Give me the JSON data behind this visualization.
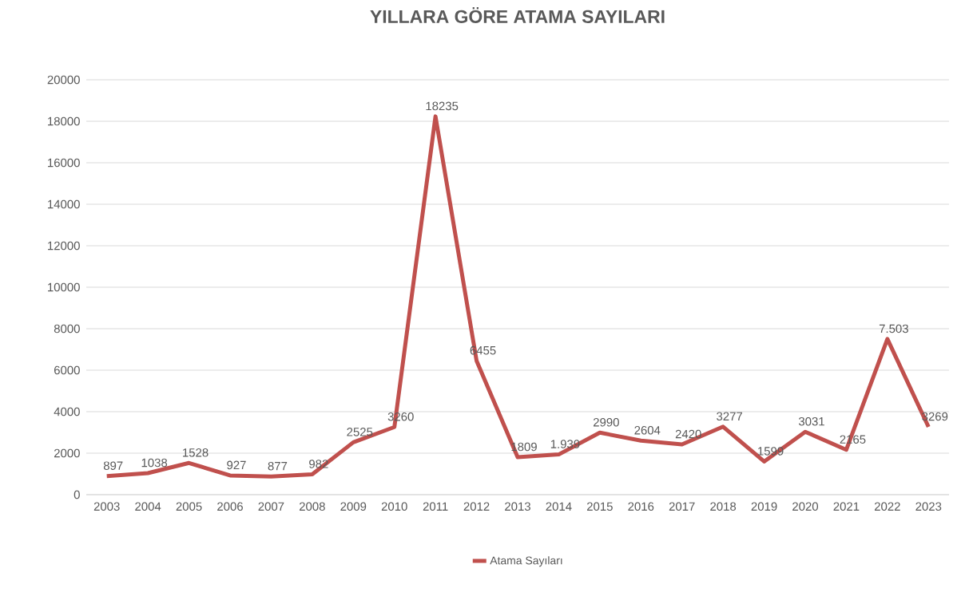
{
  "chart_data": {
    "type": "line",
    "title": "YILLARA GÖRE ATAMA SAYILARI",
    "categories": [
      "2003",
      "2004",
      "2005",
      "2006",
      "2007",
      "2008",
      "2009",
      "2010",
      "2011",
      "2012",
      "2013",
      "2014",
      "2015",
      "2016",
      "2017",
      "2018",
      "2019",
      "2020",
      "2021",
      "2022",
      "2023"
    ],
    "series": [
      {
        "name": "Atama Sayıları",
        "color": "#c0504d",
        "values": [
          897,
          1038,
          1528,
          927,
          877,
          982,
          2525,
          3260,
          18235,
          6455,
          1809,
          1939,
          2990,
          2604,
          2420,
          3277,
          1599,
          3031,
          2165,
          7503,
          3269
        ],
        "value_labels": [
          "897",
          "1038",
          "1528",
          "927",
          "877",
          "982",
          "2525",
          "3260",
          "18235",
          "6455",
          "1809",
          "1.939",
          "2990",
          "2604",
          "2420",
          "3277",
          "1599",
          "3031",
          "2165",
          "7.503",
          "3269"
        ]
      }
    ],
    "ylim": [
      0,
      20000
    ],
    "yticks": [
      0,
      2000,
      4000,
      6000,
      8000,
      10000,
      12000,
      14000,
      16000,
      18000,
      20000
    ],
    "grid": "y",
    "legend": "bottom",
    "marker": "none",
    "line_style": "solid"
  }
}
